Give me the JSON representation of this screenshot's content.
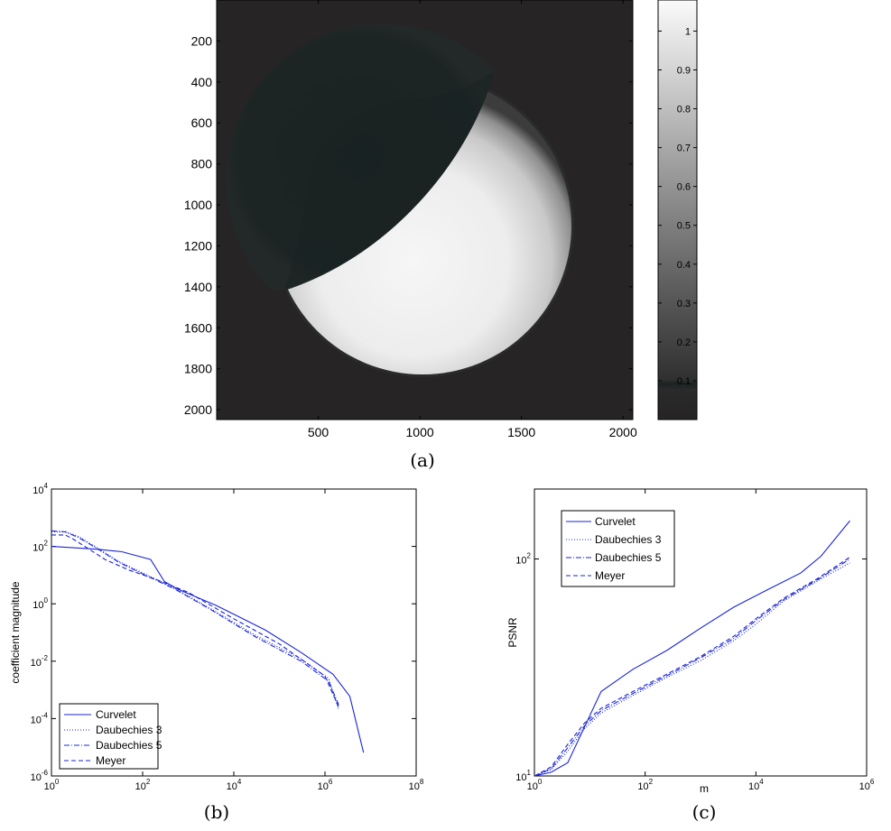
{
  "chart_data": [
    {
      "id": "a",
      "type": "heatmap",
      "caption": "(a)",
      "x_ticks": [
        "500",
        "1000",
        "1500",
        "2000"
      ],
      "x_tick_values": [
        500,
        1000,
        1500,
        2000
      ],
      "y_ticks": [
        "200",
        "400",
        "600",
        "800",
        "1000",
        "1200",
        "1400",
        "1600",
        "1800",
        "2000"
      ],
      "y_tick_values": [
        200,
        400,
        600,
        800,
        1000,
        1200,
        1400,
        1600,
        1800,
        2000
      ],
      "xlim": [
        0,
        2048
      ],
      "ylim": [
        0,
        2048
      ],
      "colorbar": {
        "range": [
          0,
          1.08
        ],
        "ticks": [
          "0.1",
          "0.2",
          "0.3",
          "0.4",
          "0.5",
          "0.6",
          "0.7",
          "0.8",
          "0.9",
          "1"
        ],
        "tick_values": [
          0.1,
          0.2,
          0.3,
          0.4,
          0.5,
          0.6,
          0.7,
          0.8,
          0.9,
          1.0
        ]
      },
      "colors": {
        "background": "#262424",
        "disk_shadow": "#1a2322",
        "bright": "#f4f4f4"
      }
    },
    {
      "id": "b",
      "type": "line",
      "caption": "(b)",
      "xscale": "log",
      "yscale": "log",
      "xlim": [
        1,
        100000000
      ],
      "ylim": [
        1e-06,
        10000
      ],
      "xlabel": "",
      "ylabel": "coefficient magnitude",
      "x_ticks": [
        {
          "base": "10",
          "exp": "0",
          "v": 1
        },
        {
          "base": "10",
          "exp": "2",
          "v": 100
        },
        {
          "base": "10",
          "exp": "4",
          "v": 10000
        },
        {
          "base": "10",
          "exp": "6",
          "v": 1000000
        },
        {
          "base": "10",
          "exp": "8",
          "v": 100000000
        }
      ],
      "y_ticks": [
        {
          "base": "10",
          "exp": "4",
          "v": 10000
        },
        {
          "base": "10",
          "exp": "2",
          "v": 100
        },
        {
          "base": "10",
          "exp": "0",
          "v": 1
        },
        {
          "base": "10",
          "exp": "-2",
          "v": 0.01
        },
        {
          "base": "10",
          "exp": "-4",
          "v": 0.0001
        },
        {
          "base": "10",
          "exp": "-6",
          "v": 1e-06
        }
      ],
      "legend_position": "bottom-left",
      "series": [
        {
          "name": "Curvelet",
          "style": "solid",
          "x": [
            1,
            10,
            35,
            150,
            300,
            600,
            4000,
            50000,
            300000,
            1500000,
            3500000,
            7000000
          ],
          "y": [
            100,
            80,
            65,
            35,
            6,
            3.2,
            0.9,
            0.12,
            0.02,
            0.0035,
            0.0006,
            6.5e-06
          ]
        },
        {
          "name": "Daubechies 3",
          "style": "dotted",
          "x": [
            1,
            2,
            4,
            10,
            30,
            100,
            500,
            3000,
            30000,
            300000,
            1200000,
            2000000
          ],
          "y": [
            320,
            330,
            220,
            90,
            30,
            12,
            3.5,
            0.7,
            0.08,
            0.012,
            0.0025,
            0.0002
          ]
        },
        {
          "name": "Daubechies 5",
          "style": "dashdot",
          "x": [
            1,
            2,
            4,
            10,
            30,
            100,
            500,
            3000,
            30000,
            300000,
            1200000,
            2000000
          ],
          "y": [
            350,
            320,
            200,
            85,
            28,
            11,
            3.3,
            0.65,
            0.07,
            0.01,
            0.002,
            0.0003
          ]
        },
        {
          "name": "Meyer",
          "style": "dashed",
          "x": [
            1,
            2,
            3,
            6,
            15,
            50,
            200,
            1000,
            10000,
            100000,
            1000000,
            2000000
          ],
          "y": [
            250,
            250,
            180,
            90,
            35,
            15,
            7,
            2.5,
            0.3,
            0.04,
            0.003,
            0.00025
          ]
        }
      ]
    },
    {
      "id": "c",
      "type": "line",
      "caption": "(c)",
      "xscale": "log",
      "yscale": "log",
      "xlim": [
        1,
        1000000
      ],
      "ylim": [
        10,
        210
      ],
      "xlabel": "m",
      "ylabel": "PSNR",
      "x_ticks": [
        {
          "base": "10",
          "exp": "0",
          "v": 1
        },
        {
          "base": "10",
          "exp": "2",
          "v": 100
        },
        {
          "base": "10",
          "exp": "4",
          "v": 10000
        },
        {
          "base": "10",
          "exp": "6",
          "v": 1000000
        }
      ],
      "y_ticks": [
        {
          "base": "10",
          "exp": "2",
          "v": 100
        },
        {
          "base": "10",
          "exp": "1",
          "v": 10
        }
      ],
      "legend_position": "top-left",
      "series": [
        {
          "name": "Curvelet",
          "style": "solid",
          "x": [
            1,
            2,
            4,
            16,
            60,
            250,
            1000,
            4000,
            16000,
            64000,
            150000,
            500000
          ],
          "y": [
            10,
            10.4,
            11.5,
            24.5,
            31,
            38,
            48,
            60,
            72,
            86,
            103,
            150
          ]
        },
        {
          "name": "Daubechies 3",
          "style": "dotted",
          "x": [
            1,
            2,
            4,
            8,
            16,
            60,
            250,
            1000,
            4000,
            10000,
            32000,
            128000,
            500000
          ],
          "y": [
            10,
            10.7,
            13,
            16.5,
            19.5,
            23.5,
            28.5,
            34,
            42,
            50,
            64,
            79,
            96
          ]
        },
        {
          "name": "Daubechies 5",
          "style": "dashdot",
          "x": [
            1,
            2,
            4,
            8,
            16,
            60,
            250,
            1000,
            4000,
            10000,
            32000,
            128000,
            500000
          ],
          "y": [
            10,
            10.8,
            13.5,
            17,
            20,
            24,
            29,
            35,
            43,
            52,
            65,
            80,
            100
          ]
        },
        {
          "name": "Meyer",
          "style": "dashed",
          "x": [
            1,
            2,
            4,
            8,
            16,
            60,
            250,
            1000,
            4000,
            10000,
            32000,
            128000,
            500000
          ],
          "y": [
            10,
            11,
            14,
            17.5,
            20.5,
            24.5,
            29.5,
            35.5,
            44,
            53,
            66,
            81,
            102
          ]
        }
      ]
    }
  ],
  "legend": {
    "curvelet": "Curvelet",
    "daub3": "Daubechies 3",
    "daub5": "Daubechies 5",
    "meyer": "Meyer"
  },
  "captions": {
    "a": "(a)",
    "b": "(b)",
    "c": "(c)"
  },
  "line_color": "#1a24d6"
}
